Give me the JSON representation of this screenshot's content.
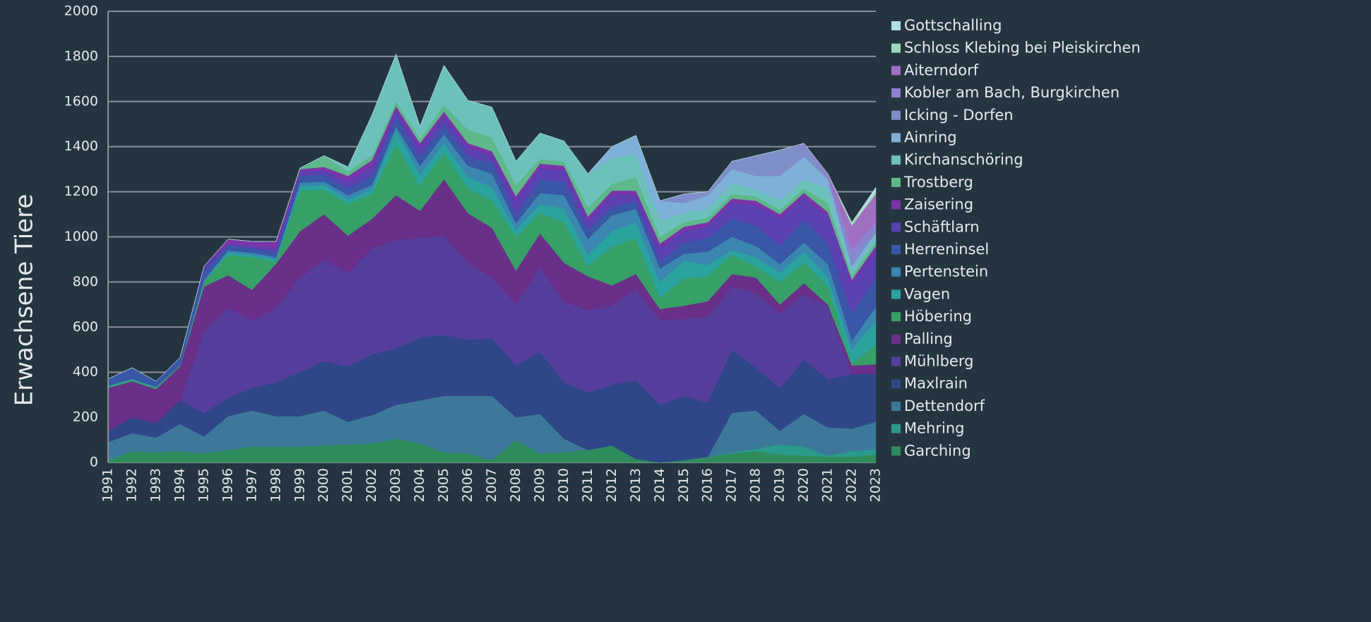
{
  "chart_data": {
    "type": "stacked_area",
    "y_label": "Erwachsene Tiere",
    "categories": [
      "1991",
      "1992",
      "1993",
      "1994",
      "1995",
      "1996",
      "1997",
      "1998",
      "1999",
      "2000",
      "2001",
      "2002",
      "2003",
      "2004",
      "2005",
      "2006",
      "2007",
      "2008",
      "2009",
      "2010",
      "2011",
      "2012",
      "2013",
      "2014",
      "2015",
      "2016",
      "2017",
      "2018",
      "2019",
      "2020",
      "2021",
      "2022",
      "2023"
    ],
    "ylim": [
      0,
      2000
    ],
    "yticks": [
      0,
      200,
      400,
      600,
      800,
      1000,
      1200,
      1400,
      1600,
      1800,
      2000
    ],
    "grid": true,
    "legend": "right",
    "series": [
      {
        "name": "Garching",
        "color": "#2f8c5c",
        "values": [
          5,
          50,
          45,
          50,
          40,
          55,
          70,
          70,
          70,
          75,
          80,
          85,
          105,
          85,
          45,
          40,
          10,
          100,
          40,
          45,
          55,
          75,
          15,
          0,
          10,
          25,
          40,
          50,
          35,
          30,
          25,
          25,
          35
        ]
      },
      {
        "name": "Mehring",
        "color": "#2a9a8c",
        "values": [
          5,
          0,
          0,
          0,
          0,
          0,
          0,
          0,
          0,
          0,
          0,
          0,
          0,
          0,
          0,
          0,
          0,
          0,
          0,
          0,
          0,
          0,
          0,
          0,
          0,
          0,
          5,
          10,
          45,
          40,
          5,
          25,
          25
        ]
      },
      {
        "name": "Dettendorf",
        "color": "#3d789a",
        "values": [
          80,
          80,
          65,
          120,
          75,
          150,
          160,
          135,
          135,
          155,
          100,
          125,
          150,
          190,
          250,
          255,
          285,
          100,
          175,
          60,
          0,
          0,
          0,
          0,
          0,
          0,
          175,
          170,
          60,
          145,
          125,
          100,
          120
        ]
      },
      {
        "name": "Maxlrain",
        "color": "#2f4788",
        "values": [
          50,
          70,
          65,
          105,
          105,
          80,
          100,
          150,
          195,
          220,
          245,
          270,
          250,
          280,
          270,
          250,
          255,
          230,
          275,
          250,
          255,
          270,
          350,
          255,
          285,
          240,
          280,
          190,
          190,
          240,
          215,
          240,
          215
        ]
      },
      {
        "name": "Mühlberg",
        "color": "#563f9c",
        "values": [
          0,
          0,
          0,
          0,
          360,
          400,
          300,
          330,
          420,
          450,
          415,
          470,
          480,
          440,
          440,
          340,
          270,
          270,
          375,
          360,
          365,
          350,
          400,
          375,
          340,
          380,
          280,
          330,
          330,
          290,
          320,
          0,
          0
        ]
      },
      {
        "name": "Palling",
        "color": "#6a2f88",
        "values": [
          190,
          160,
          150,
          150,
          200,
          145,
          135,
          195,
          205,
          200,
          165,
          130,
          200,
          120,
          250,
          220,
          220,
          150,
          150,
          170,
          150,
          90,
          70,
          50,
          60,
          70,
          55,
          70,
          40,
          50,
          10,
          40,
          40
        ]
      },
      {
        "name": "Höbering",
        "color": "#37a066",
        "values": [
          5,
          5,
          5,
          5,
          20,
          90,
          145,
          10,
          180,
          110,
          140,
          110,
          225,
          110,
          120,
          110,
          120,
          150,
          90,
          180,
          45,
          170,
          160,
          50,
          120,
          110,
          85,
          50,
          100,
          90,
          80,
          10,
          85
        ]
      },
      {
        "name": "Vagen",
        "color": "#2aa39e",
        "values": [
          5,
          5,
          5,
          0,
          0,
          10,
          10,
          10,
          20,
          20,
          20,
          20,
          60,
          50,
          40,
          50,
          60,
          30,
          40,
          60,
          50,
          70,
          70,
          70,
          80,
          50,
          20,
          40,
          40,
          50,
          40,
          60,
          110
        ]
      },
      {
        "name": "Pertenstein",
        "color": "#3a86b0",
        "values": [
          0,
          0,
          0,
          0,
          10,
          10,
          10,
          10,
          15,
          15,
          20,
          20,
          20,
          40,
          40,
          50,
          60,
          30,
          50,
          60,
          70,
          70,
          60,
          60,
          30,
          60,
          60,
          50,
          40,
          40,
          60,
          40,
          60
        ]
      },
      {
        "name": "Herreninsel",
        "color": "#3a56a6",
        "values": [
          30,
          50,
          25,
          35,
          40,
          20,
          20,
          20,
          30,
          30,
          30,
          40,
          40,
          40,
          40,
          40,
          50,
          40,
          60,
          60,
          40,
          40,
          30,
          30,
          50,
          60,
          80,
          90,
          80,
          100,
          90,
          120,
          130
        ]
      },
      {
        "name": "Schäftlarn",
        "color": "#5a40b0",
        "values": [
          0,
          0,
          0,
          0,
          20,
          10,
          10,
          20,
          20,
          20,
          30,
          40,
          30,
          40,
          40,
          40,
          30,
          60,
          50,
          50,
          40,
          50,
          30,
          60,
          50,
          50,
          70,
          90,
          120,
          100,
          120,
          130,
          120
        ]
      },
      {
        "name": "Zaisering",
        "color": "#7a34a8",
        "values": [
          0,
          0,
          0,
          0,
          0,
          20,
          20,
          30,
          10,
          15,
          25,
          30,
          20,
          20,
          20,
          20,
          20,
          20,
          20,
          20,
          20,
          20,
          20,
          20,
          20,
          20,
          20,
          20,
          20,
          20,
          20,
          20,
          20
        ]
      },
      {
        "name": "Trostberg",
        "color": "#5fb88a",
        "values": [
          0,
          0,
          0,
          0,
          0,
          0,
          0,
          0,
          5,
          50,
          20,
          20,
          20,
          20,
          30,
          60,
          60,
          50,
          20,
          20,
          40,
          30,
          60,
          30,
          20,
          20,
          20,
          20,
          20,
          20,
          40,
          20,
          20
        ]
      },
      {
        "name": "Kirchanschöring",
        "color": "#6cc2bb",
        "values": [
          0,
          0,
          0,
          0,
          0,
          0,
          0,
          0,
          0,
          0,
          20,
          180,
          210,
          55,
          175,
          130,
          135,
          105,
          115,
          90,
          150,
          115,
          100,
          70,
          40,
          40,
          50,
          30,
          40,
          40,
          65,
          20,
          20
        ]
      },
      {
        "name": " Ainring",
        "color": "#7fb0d8",
        "values": [
          0,
          0,
          0,
          0,
          0,
          0,
          0,
          0,
          0,
          0,
          0,
          0,
          0,
          0,
          0,
          0,
          0,
          0,
          0,
          0,
          0,
          50,
          85,
          90,
          45,
          60,
          60,
          60,
          110,
          100,
          40,
          20,
          20
        ]
      },
      {
        "name": "Icking - Dorfen",
        "color": "#7f8ec8",
        "values": [
          0,
          0,
          0,
          0,
          0,
          0,
          0,
          0,
          0,
          0,
          0,
          0,
          0,
          0,
          0,
          0,
          0,
          0,
          0,
          0,
          0,
          0,
          0,
          0,
          40,
          15,
          35,
          90,
          115,
          50,
          10,
          40,
          20
        ]
      },
      {
        "name": "Kobler am Bach, Burgkirchen",
        "color": "#8f80d0",
        "values": [
          0,
          0,
          0,
          0,
          0,
          0,
          0,
          0,
          0,
          0,
          0,
          0,
          0,
          0,
          0,
          0,
          0,
          0,
          0,
          0,
          0,
          0,
          0,
          0,
          0,
          0,
          0,
          0,
          0,
          10,
          10,
          40,
          30
        ]
      },
      {
        "name": "Aiterndorf",
        "color": "#a070c0",
        "values": [
          0,
          0,
          0,
          0,
          0,
          0,
          0,
          0,
          0,
          0,
          0,
          0,
          0,
          0,
          0,
          0,
          0,
          0,
          0,
          0,
          0,
          0,
          0,
          0,
          0,
          0,
          0,
          0,
          0,
          0,
          5,
          100,
          120
        ]
      },
      {
        "name": "Schloss Klebing bei Pleiskirchen",
        "color": "#9ed6bc",
        "values": [
          0,
          0,
          0,
          0,
          0,
          0,
          0,
          0,
          0,
          0,
          0,
          0,
          0,
          0,
          0,
          0,
          0,
          0,
          0,
          0,
          0,
          0,
          0,
          0,
          0,
          0,
          0,
          0,
          0,
          0,
          0,
          10,
          10
        ]
      },
      {
        "name": "Gottschalling",
        "color": "#b2dfe0",
        "values": [
          0,
          0,
          0,
          0,
          0,
          0,
          0,
          0,
          0,
          0,
          0,
          0,
          0,
          0,
          0,
          0,
          0,
          0,
          0,
          0,
          0,
          0,
          0,
          0,
          0,
          0,
          0,
          0,
          0,
          0,
          0,
          5,
          20
        ]
      }
    ]
  }
}
